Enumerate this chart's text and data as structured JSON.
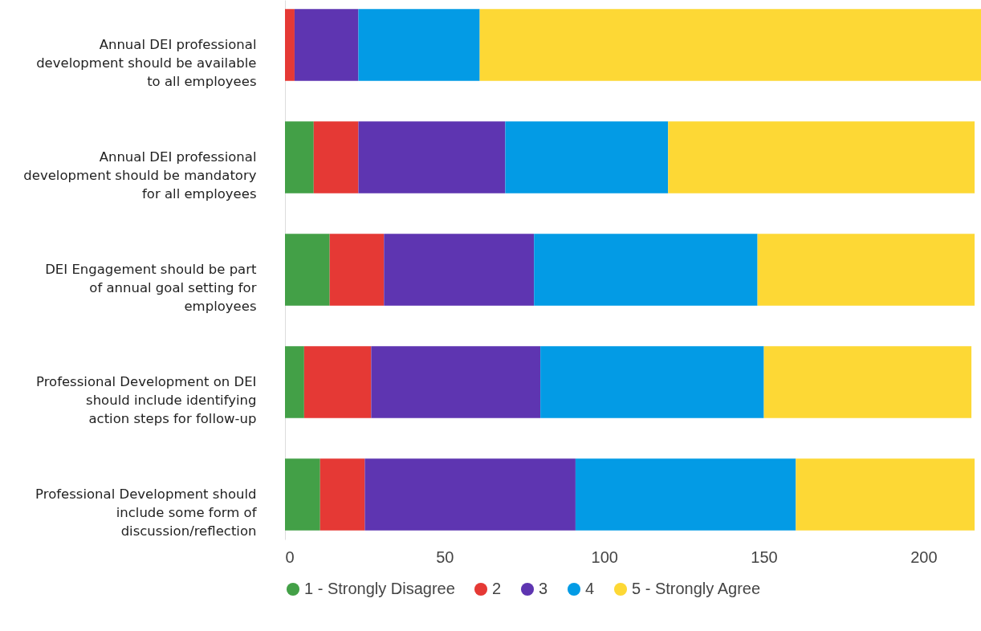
{
  "chart_data": {
    "type": "bar",
    "orientation": "horizontal",
    "stacked": true,
    "categories": [
      "Annual DEI professional development should be available to all employees",
      "Annual DEI professional development should be mandatory for all employees",
      "DEI Engagement should be part of annual goal setting for employees",
      "Professional Development on DEI should include identifying action steps for follow-up",
      "Professional Development should include some form of discussion/reflection"
    ],
    "series": [
      {
        "name": "1 - Strongly Disagree",
        "color": "#43a047",
        "values": [
          0,
          9,
          14,
          6,
          11
        ]
      },
      {
        "name": "2",
        "color": "#e53935",
        "values": [
          3,
          14,
          17,
          21,
          14
        ]
      },
      {
        "name": "3",
        "color": "#5e35b1",
        "values": [
          20,
          46,
          47,
          53,
          66
        ]
      },
      {
        "name": "4",
        "color": "#039be5",
        "values": [
          38,
          51,
          70,
          70,
          69
        ]
      },
      {
        "name": "5 - Strongly Agree",
        "color": "#fdd835",
        "values": [
          157,
          96,
          68,
          65,
          56
        ]
      }
    ],
    "xlim": [
      0,
      218
    ],
    "xticks": [
      0,
      50,
      100,
      150,
      200
    ],
    "grid": false,
    "legend": "bottom",
    "marker": "circle"
  }
}
